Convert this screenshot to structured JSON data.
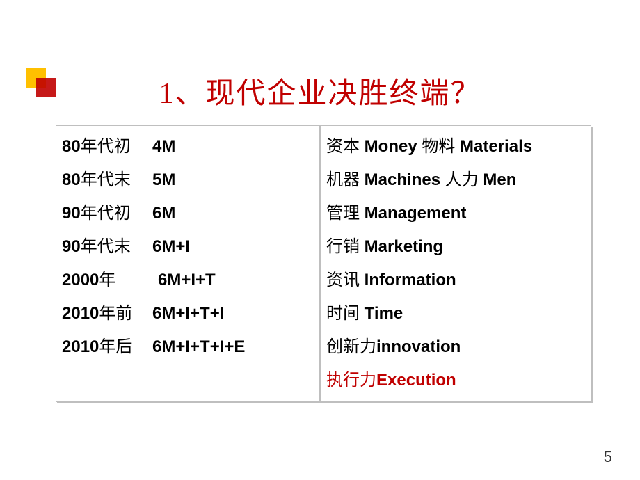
{
  "title": "1、现代企业决胜终端？",
  "left": [
    {
      "era_cn": "年代初",
      "era_prefix": "80",
      "code": "4M"
    },
    {
      "era_cn": "年代末",
      "era_prefix": "80",
      "code": "5M"
    },
    {
      "era_cn": "年代初",
      "era_prefix": "90",
      "code": "6M"
    },
    {
      "era_cn": "年代末",
      "era_prefix": "90",
      "code": "6M+I"
    },
    {
      "era_cn": "年",
      "era_prefix": "2000",
      "code": "6M+I+T",
      "era_pad": true
    },
    {
      "era_cn": "年前",
      "era_prefix": "2010",
      "code": "6M+I+T+I"
    },
    {
      "era_cn": "年后",
      "era_prefix": "2010",
      "code": "6M+I+T+I+E"
    }
  ],
  "right": [
    {
      "cn": "资本",
      "en": "Money",
      "cn2": "物料",
      "en2": "Materials"
    },
    {
      "cn": "机器",
      "en": "Machines",
      "cn2": "人力",
      "en2": "Men"
    },
    {
      "cn": "管理",
      "en": "Management"
    },
    {
      "cn": "行销",
      "en": "Marketing"
    },
    {
      "cn": "资讯",
      "en": "Information"
    },
    {
      "cn": "时间",
      "en": "Time"
    },
    {
      "cn": "创新力",
      "en": "innovation",
      "nospace": true
    },
    {
      "cn": "执行力",
      "en": "Execution",
      "nospace": true,
      "red": true
    }
  ],
  "pagenum": "5",
  "colors": {
    "title": "#c00000",
    "accent_red": "#c00000",
    "accent_yellow": "#ffc000",
    "text": "#000000",
    "border": "#bfbfbf",
    "background": "#ffffff"
  }
}
